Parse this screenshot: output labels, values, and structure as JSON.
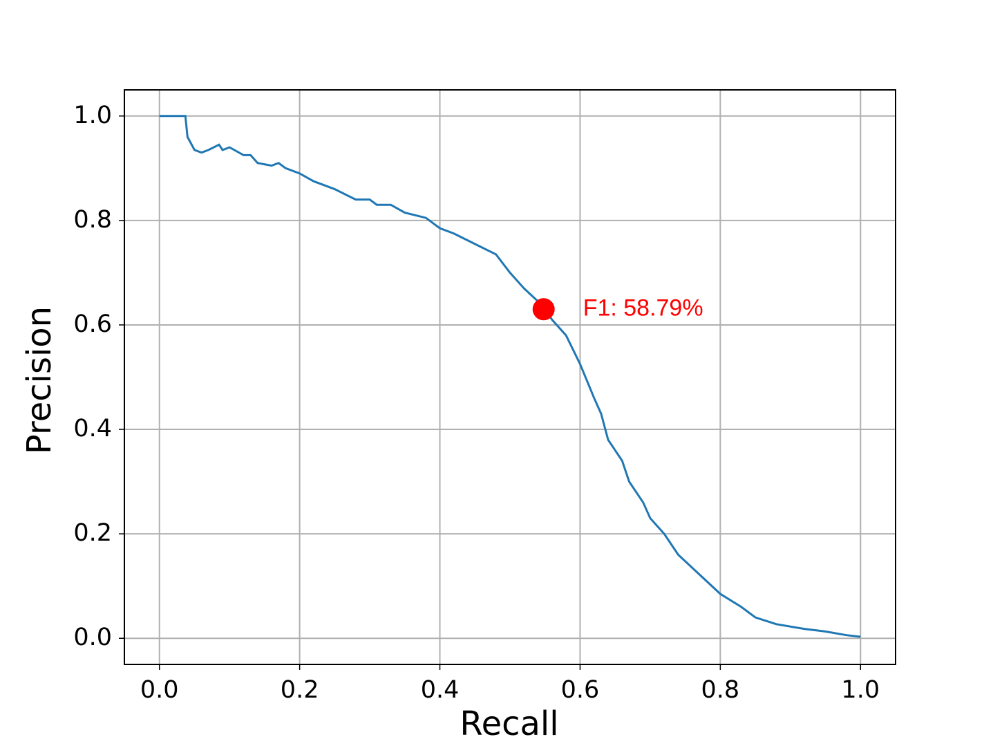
{
  "chart_data": {
    "type": "line",
    "x_label": "Recall",
    "y_label": "Precision",
    "x": [
      0,
      0.037,
      0.04,
      0.05,
      0.06,
      0.07,
      0.085,
      0.09,
      0.1,
      0.12,
      0.13,
      0.14,
      0.16,
      0.17,
      0.18,
      0.2,
      0.22,
      0.25,
      0.28,
      0.3,
      0.31,
      0.33,
      0.35,
      0.38,
      0.4,
      0.42,
      0.45,
      0.48,
      0.5,
      0.52,
      0.54,
      0.55,
      0.56,
      0.58,
      0.6,
      0.62,
      0.63,
      0.64,
      0.66,
      0.67,
      0.69,
      0.7,
      0.72,
      0.74,
      0.76,
      0.78,
      0.8,
      0.83,
      0.85,
      0.88,
      0.92,
      0.95,
      0.98,
      1.0
    ],
    "series": [
      {
        "color": "#1f77b4",
        "values": [
          1.0,
          1.0,
          0.96,
          0.935,
          0.93,
          0.935,
          0.945,
          0.935,
          0.94,
          0.925,
          0.925,
          0.91,
          0.905,
          0.91,
          0.9,
          0.89,
          0.875,
          0.86,
          0.84,
          0.84,
          0.83,
          0.83,
          0.815,
          0.805,
          0.785,
          0.775,
          0.755,
          0.735,
          0.7,
          0.67,
          0.645,
          0.63,
          0.61,
          0.58,
          0.525,
          0.46,
          0.43,
          0.38,
          0.34,
          0.3,
          0.26,
          0.23,
          0.2,
          0.16,
          0.135,
          0.11,
          0.085,
          0.06,
          0.04,
          0.027,
          0.018,
          0.013,
          0.006,
          0.003
        ]
      }
    ],
    "marker": {
      "x": 0.548,
      "y": 0.63,
      "color": "#ff0000",
      "label": "F1: 58.79%"
    },
    "xlim": [
      -0.05,
      1.05
    ],
    "ylim": [
      -0.05,
      1.05
    ],
    "xticks": [
      {
        "value": 0,
        "label": "0.0"
      },
      0.2,
      0.4,
      0.6,
      0.8,
      {
        "value": 1,
        "label": "1.0"
      }
    ],
    "yticks": [
      {
        "value": 0,
        "label": "0.0"
      },
      0.2,
      0.4,
      0.6,
      0.8,
      {
        "value": 1,
        "label": "1.0"
      }
    ],
    "grid": true
  }
}
